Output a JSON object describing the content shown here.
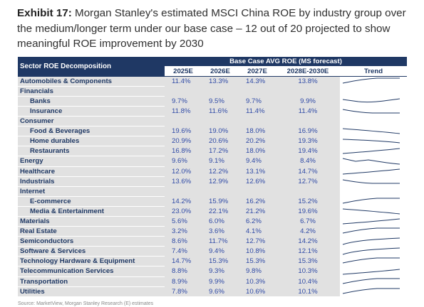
{
  "caption": {
    "label": "Exhibit 17:",
    "text": "Morgan Stanley's estimated MSCI China ROE by industry group over the medium/longer term under our base case – 12 out of 20 projected to show meaningful ROE improvement by 2030"
  },
  "table": {
    "sector_header": "Sector ROE Decomposition",
    "group_header": "Base Case AVG ROE (MS forecast)",
    "columns": [
      "2025E",
      "2026E",
      "2027E",
      "2028E-2030E"
    ],
    "trend_header": "Trend",
    "rows": [
      {
        "label": "Automobiles & Components",
        "values": [
          "11.4%",
          "13.3%",
          "14.3%",
          "13.8%"
        ],
        "trend": "up-flat",
        "level": 0
      },
      {
        "label": "Financials",
        "values": [
          "",
          "",
          "",
          ""
        ],
        "trend": "",
        "level": 0,
        "group": true
      },
      {
        "label": "Banks",
        "values": [
          "9.7%",
          "9.5%",
          "9.7%",
          "9.9%"
        ],
        "trend": "dip-up",
        "level": 1
      },
      {
        "label": "Insurance",
        "values": [
          "11.8%",
          "11.6%",
          "11.4%",
          "11.4%"
        ],
        "trend": "down-flat",
        "level": 1
      },
      {
        "label": "Consumer",
        "values": [
          "",
          "",
          "",
          ""
        ],
        "trend": "",
        "level": 0,
        "group": true
      },
      {
        "label": "Food & Beverages",
        "values": [
          "19.6%",
          "19.0%",
          "18.0%",
          "16.9%"
        ],
        "trend": "down",
        "level": 1
      },
      {
        "label": "Home durables",
        "values": [
          "20.9%",
          "20.6%",
          "20.2%",
          "19.3%"
        ],
        "trend": "down-gentle",
        "level": 1
      },
      {
        "label": "Restaurants",
        "values": [
          "16.8%",
          "17.2%",
          "18.0%",
          "19.4%"
        ],
        "trend": "up",
        "level": 1
      },
      {
        "label": "Energy",
        "values": [
          "9.6%",
          "9.1%",
          "9.4%",
          "8.4%"
        ],
        "trend": "dip-down",
        "level": 0
      },
      {
        "label": "Healthcare",
        "values": [
          "12.0%",
          "12.2%",
          "13.1%",
          "14.7%"
        ],
        "trend": "up",
        "level": 0
      },
      {
        "label": "Industrials",
        "values": [
          "13.6%",
          "12.9%",
          "12.6%",
          "12.7%"
        ],
        "trend": "down-flat",
        "level": 0
      },
      {
        "label": "Internet",
        "values": [
          "",
          "",
          "",
          ""
        ],
        "trend": "",
        "level": 0,
        "group": true
      },
      {
        "label": "E-commerce",
        "values": [
          "14.2%",
          "15.9%",
          "16.2%",
          "15.2%"
        ],
        "trend": "up-flat",
        "level": 1
      },
      {
        "label": "Media & Entertainment",
        "values": [
          "23.0%",
          "22.1%",
          "21.2%",
          "19.6%"
        ],
        "trend": "down",
        "level": 1
      },
      {
        "label": "Materials",
        "values": [
          "5.6%",
          "6.0%",
          "6.2%",
          "6.7%"
        ],
        "trend": "up",
        "level": 0
      },
      {
        "label": "Real Estate",
        "values": [
          "3.2%",
          "3.6%",
          "4.1%",
          "4.2%"
        ],
        "trend": "up-flat",
        "level": 0
      },
      {
        "label": "Semiconductors",
        "values": [
          "8.6%",
          "11.7%",
          "12.7%",
          "14.2%"
        ],
        "trend": "up-steep",
        "level": 0
      },
      {
        "label": "Software & Services",
        "values": [
          "7.4%",
          "9.4%",
          "10.8%",
          "12.1%"
        ],
        "trend": "up-steep",
        "level": 0
      },
      {
        "label": "Technology Hardware & Equipment",
        "values": [
          "14.7%",
          "15.3%",
          "15.3%",
          "15.3%"
        ],
        "trend": "up-flat",
        "level": 0
      },
      {
        "label": "Telecommunication Services",
        "values": [
          "8.8%",
          "9.3%",
          "9.8%",
          "10.3%"
        ],
        "trend": "up",
        "level": 0
      },
      {
        "label": "Transportation",
        "values": [
          "8.9%",
          "9.9%",
          "10.3%",
          "10.4%"
        ],
        "trend": "up-flat",
        "level": 0
      },
      {
        "label": "Utilities",
        "values": [
          "7.8%",
          "9.6%",
          "10.6%",
          "10.1%"
        ],
        "trend": "up-flat",
        "level": 0
      }
    ]
  },
  "source": "Source: MarketView, Morgan Stanley Research (E) estimates",
  "colors": {
    "header_bg": "#1f3864",
    "label_bg": "#e1e1e1",
    "value_text": "#2f4aa6",
    "label_text": "#1f3864"
  }
}
